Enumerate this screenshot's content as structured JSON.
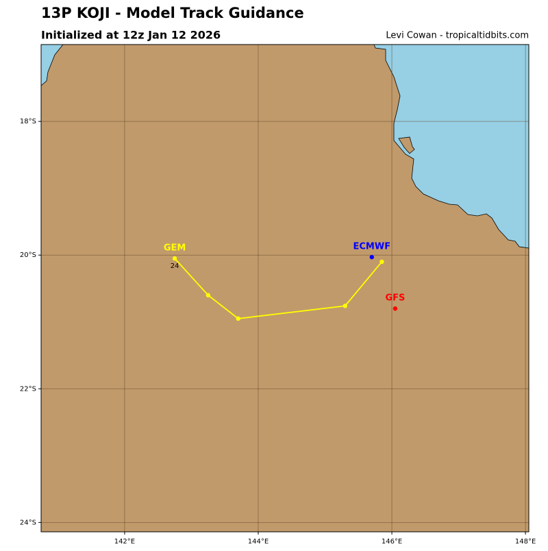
{
  "chart_data": {
    "type": "track",
    "title": "13P KOJI - Model Track Guidance",
    "subtitle": "Initialized at 12z Jan 12 2026",
    "credit": "Levi Cowan - tropicaltidbits.com",
    "xlim": [
      140.75,
      148.05
    ],
    "ylim": [
      -24.14,
      -16.85
    ],
    "xticks": [
      {
        "value": 142,
        "label": "142°E"
      },
      {
        "value": 144,
        "label": "144°E"
      },
      {
        "value": 146,
        "label": "146°E"
      },
      {
        "value": 148,
        "label": "148°E"
      }
    ],
    "yticks": [
      {
        "value": -18,
        "label": "18°S"
      },
      {
        "value": -20,
        "label": "20°S"
      },
      {
        "value": -22,
        "label": "22°S"
      },
      {
        "value": -24,
        "label": "24°S"
      }
    ],
    "grid": true,
    "series": [
      {
        "name": "GEM",
        "color": "#ffff00",
        "x": [
          142.75,
          143.25,
          143.7,
          145.3,
          145.85
        ],
        "y": [
          -20.05,
          -20.6,
          -20.95,
          -20.76,
          -20.1
        ]
      },
      {
        "name": "ECMWF",
        "color": "#0000ff",
        "x": [
          145.7
        ],
        "y": [
          -20.03
        ]
      },
      {
        "name": "GFS",
        "color": "#ff0000",
        "x": [
          146.05
        ],
        "y": [
          -20.8
        ]
      }
    ],
    "annotations": [
      {
        "text": "24",
        "x": 142.75,
        "y": -20.05
      }
    ]
  }
}
